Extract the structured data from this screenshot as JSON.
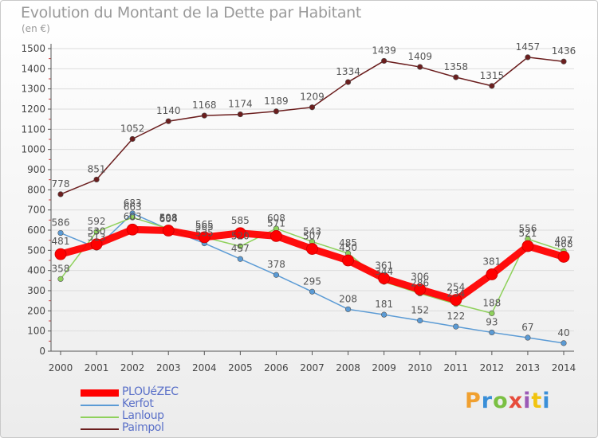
{
  "chart_data": {
    "type": "line",
    "title": "Evolution du Montant de la Dette par Habitant",
    "subtitle": "(en €)",
    "categories": [
      "2000",
      "2001",
      "2002",
      "2003",
      "2004",
      "2005",
      "2006",
      "2007",
      "2008",
      "2009",
      "2010",
      "2011",
      "2012",
      "2013",
      "2014"
    ],
    "ylim": [
      0,
      1500
    ],
    "yticks": [
      0,
      100,
      200,
      300,
      400,
      500,
      600,
      700,
      800,
      900,
      1000,
      1100,
      1200,
      1300,
      1400,
      1500
    ],
    "grid": "horizontal",
    "legend_position": "bottom-left",
    "series": [
      {
        "name": "PLOUéZEC",
        "color": "#ff0000",
        "values": [
          481,
          530,
          603,
          598,
          565,
          585,
          571,
          507,
          450,
          361,
          306,
          254,
          381,
          521,
          468
        ]
      },
      {
        "name": "Kerfot",
        "color": "#5b9bd5",
        "values": [
          586,
          513,
          683,
          604,
          535,
          457,
          378,
          295,
          208,
          181,
          152,
          122,
          93,
          67,
          40
        ]
      },
      {
        "name": "Lanloup",
        "color": "#8fd15c",
        "values": [
          358,
          592,
          663,
          608,
          565,
          520,
          608,
          543,
          485,
          344,
          286,
          234,
          188,
          556,
          497
        ]
      },
      {
        "name": "Paimpol",
        "color": "#6b1e1e",
        "values": [
          778,
          851,
          1052,
          1140,
          1168,
          1174,
          1189,
          1209,
          1334,
          1439,
          1409,
          1358,
          1315,
          1457,
          1436
        ]
      }
    ]
  },
  "brand": {
    "text": "Proxiti"
  }
}
